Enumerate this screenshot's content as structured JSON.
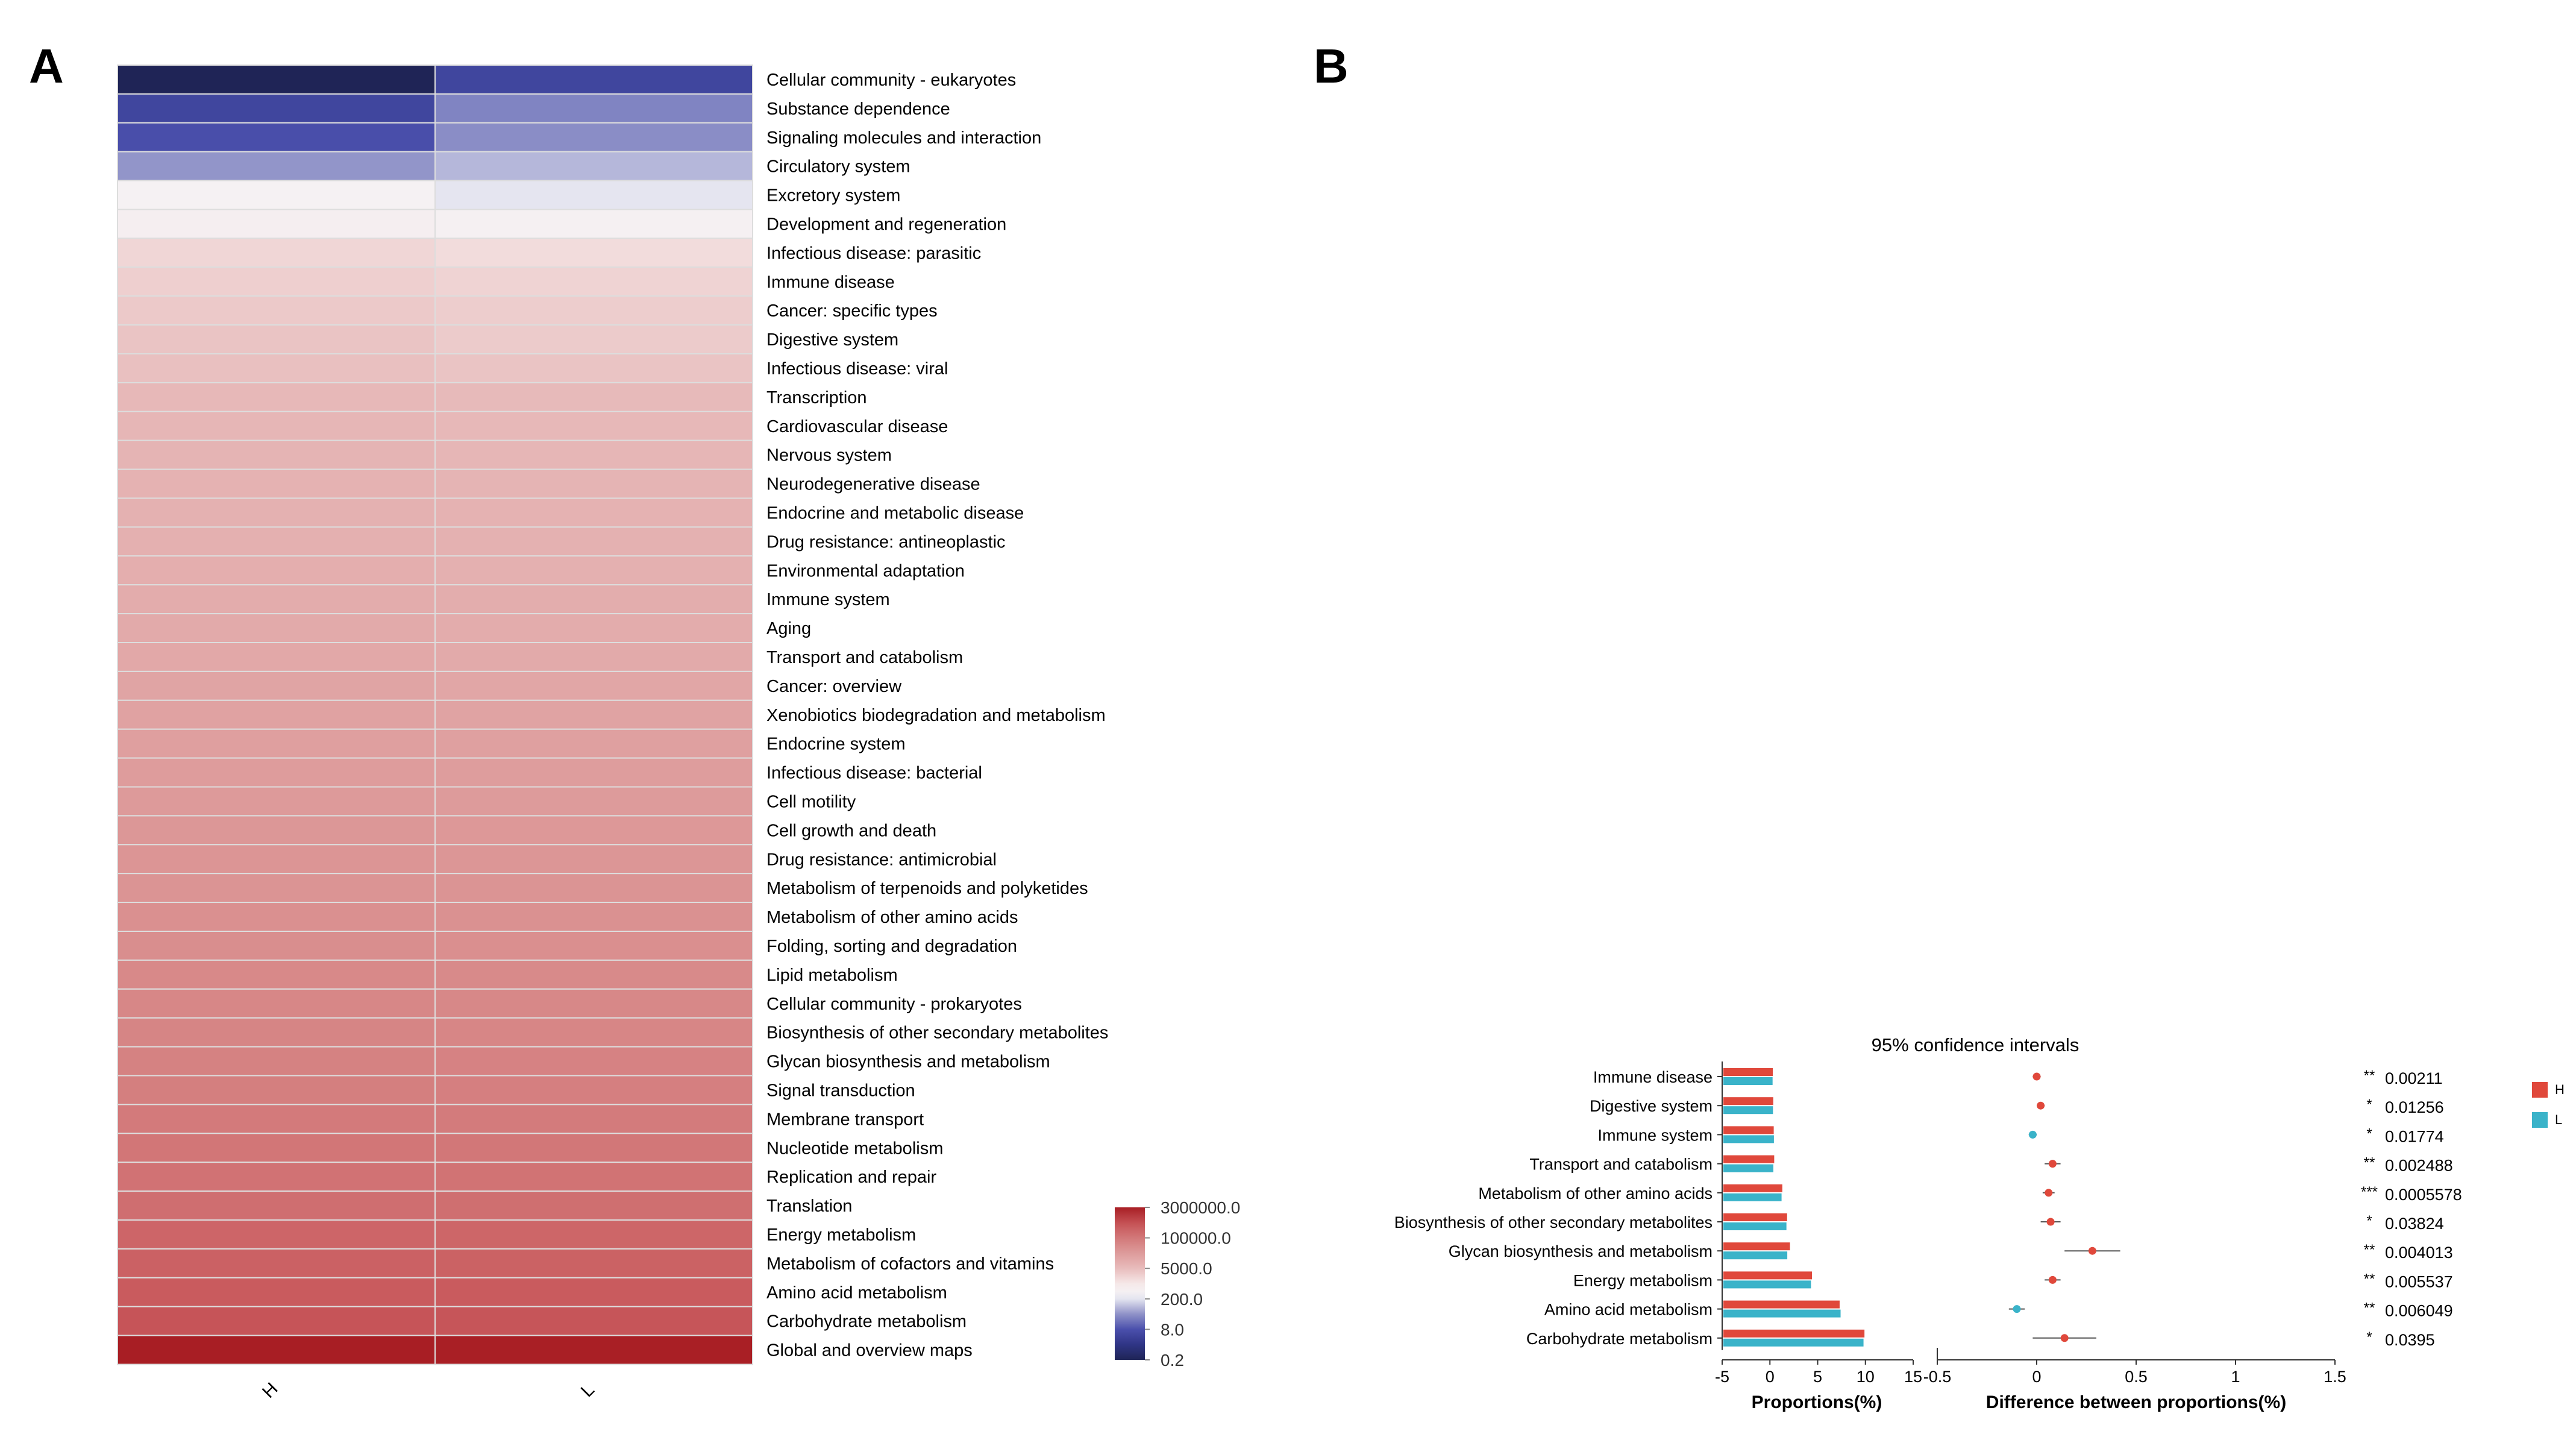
{
  "panels": {
    "a": "A",
    "b": "B"
  },
  "colors": {
    "low": "#1f2456",
    "lowmid": "#3b40a0",
    "mid": "#ffffff",
    "high": "#a81e24",
    "group_h": "#e0483b",
    "group_l": "#3ab3c9",
    "grid_line": "#cccccc"
  },
  "chart_data": [
    {
      "type": "heatmap",
      "panel": "A",
      "columns": [
        "H",
        "L"
      ],
      "rows": [
        "Cellular community - eukaryotes",
        "Substance dependence",
        "Signaling molecules and interaction",
        "Circulatory system",
        "Excretory system",
        "Development and regeneration",
        "Infectious disease: parasitic",
        "Immune disease",
        "Cancer: specific types",
        "Digestive system",
        "Infectious disease: viral",
        "Transcription",
        "Cardiovascular disease",
        "Nervous system",
        "Neurodegenerative disease",
        "Endocrine and metabolic disease",
        "Drug resistance: antineoplastic",
        "Environmental adaptation",
        "Immune system",
        "Aging",
        "Transport and catabolism",
        "Cancer: overview",
        "Xenobiotics biodegradation and metabolism",
        "Endocrine system",
        "Infectious disease: bacterial",
        "Cell motility",
        "Cell growth and death",
        "Drug resistance: antimicrobial",
        "Metabolism of terpenoids and polyketides",
        "Metabolism of other amino acids",
        "Folding, sorting and degradation",
        "Lipid metabolism",
        "Cellular community - prokaryotes",
        "Biosynthesis of other secondary metabolites",
        "Glycan biosynthesis and metabolism",
        "Signal transduction",
        "Membrane transport",
        "Nucleotide metabolism",
        "Replication and repair",
        "Translation",
        "Energy metabolism",
        "Metabolism of cofactors and vitamins",
        "Amino acid metabolism",
        "Carbohydrate metabolism",
        "Global and overview maps"
      ],
      "values": [
        [
          0.2,
          3
        ],
        [
          3,
          20
        ],
        [
          5,
          25
        ],
        [
          30,
          60
        ],
        [
          300,
          150
        ],
        [
          400,
          350
        ],
        [
          1500,
          1200
        ],
        [
          2000,
          1700
        ],
        [
          2500,
          2100
        ],
        [
          3000,
          2300
        ],
        [
          3500,
          3000
        ],
        [
          5000,
          4500
        ],
        [
          5500,
          5000
        ],
        [
          6000,
          5500
        ],
        [
          6500,
          6000
        ],
        [
          7000,
          6500
        ],
        [
          7500,
          7000
        ],
        [
          8000,
          7500
        ],
        [
          9000,
          8500
        ],
        [
          10000,
          9000
        ],
        [
          11000,
          10000
        ],
        [
          13000,
          12000
        ],
        [
          15000,
          14000
        ],
        [
          17000,
          16000
        ],
        [
          20000,
          19000
        ],
        [
          22000,
          21000
        ],
        [
          25000,
          24000
        ],
        [
          28000,
          27000
        ],
        [
          30000,
          29000
        ],
        [
          35000,
          34000
        ],
        [
          40000,
          38000
        ],
        [
          50000,
          48000
        ],
        [
          55000,
          52000
        ],
        [
          60000,
          58000
        ],
        [
          70000,
          68000
        ],
        [
          80000,
          78000
        ],
        [
          100000,
          95000
        ],
        [
          120000,
          115000
        ],
        [
          140000,
          135000
        ],
        [
          170000,
          165000
        ],
        [
          250000,
          240000
        ],
        [
          300000,
          290000
        ],
        [
          400000,
          390000
        ],
        [
          500000,
          480000
        ],
        [
          3000000,
          2900000
        ]
      ],
      "colorbar": {
        "ticks": [
          "3000000.0",
          "100000.0",
          "5000.0",
          "200.0",
          "8.0",
          "0.2"
        ],
        "tick_values": [
          3000000,
          100000,
          5000,
          200,
          8,
          0.2
        ],
        "scale": "log"
      }
    },
    {
      "type": "bar",
      "panel": "B",
      "title": "95% confidence intervals",
      "categories": [
        "Immune disease",
        "Digestive system",
        "Immune system",
        "Transport and catabolism",
        "Metabolism of other amino acids",
        "Biosynthesis of other secondary metabolites",
        "Glycan biosynthesis and metabolism",
        "Energy metabolism",
        "Amino acid metabolism",
        "Carbohydrate metabolism"
      ],
      "series": [
        {
          "name": "H",
          "values": [
            0.3,
            0.35,
            0.4,
            0.45,
            1.3,
            1.8,
            2.1,
            4.4,
            7.3,
            9.9
          ]
        },
        {
          "name": "L",
          "values": [
            0.28,
            0.32,
            0.42,
            0.36,
            1.22,
            1.73,
            1.82,
            4.3,
            7.4,
            9.8
          ]
        }
      ],
      "xlabel": "Proportions(%)",
      "xlim": [
        -5,
        15
      ],
      "xticks": [
        "-5",
        "0",
        "5",
        "10",
        "15"
      ],
      "xtick_values": [
        -5,
        0,
        5,
        10,
        15
      ]
    },
    {
      "type": "scatter",
      "panel": "B",
      "subtype": "confidence-interval",
      "categories": [
        "Immune disease",
        "Digestive system",
        "Immune system",
        "Transport and catabolism",
        "Metabolism of other amino acids",
        "Biosynthesis of other secondary metabolites",
        "Glycan biosynthesis and metabolism",
        "Energy metabolism",
        "Amino acid metabolism",
        "Carbohydrate metabolism"
      ],
      "differences": [
        0.0,
        0.02,
        -0.02,
        0.08,
        0.06,
        0.07,
        0.28,
        0.08,
        -0.1,
        0.14
      ],
      "ci_low": [
        -0.02,
        0.0,
        -0.04,
        0.04,
        0.03,
        0.02,
        0.14,
        0.04,
        -0.14,
        -0.02
      ],
      "ci_high": [
        0.02,
        0.04,
        0.0,
        0.12,
        0.09,
        0.12,
        0.42,
        0.12,
        -0.06,
        0.3
      ],
      "point_groups": [
        "H",
        "H",
        "L",
        "H",
        "H",
        "H",
        "H",
        "H",
        "L",
        "H"
      ],
      "xlabel": "Difference between proportions(%)",
      "xlim": [
        -0.5,
        1.5
      ],
      "xticks": [
        "-0.5",
        "0",
        "0.5",
        "1",
        "1.5"
      ],
      "xtick_values": [
        -0.5,
        0,
        0.5,
        1,
        1.5
      ],
      "stars": [
        "**",
        "*",
        "*",
        "**",
        "***",
        "*",
        "**",
        "**",
        "**",
        "*"
      ],
      "pvalues": [
        "0.00211",
        "0.01256",
        "0.01774",
        "0.002488",
        "0.0005578",
        "0.03824",
        "0.004013",
        "0.005537",
        "0.006049",
        "0.0395"
      ],
      "legend": [
        "H",
        "L"
      ]
    }
  ]
}
